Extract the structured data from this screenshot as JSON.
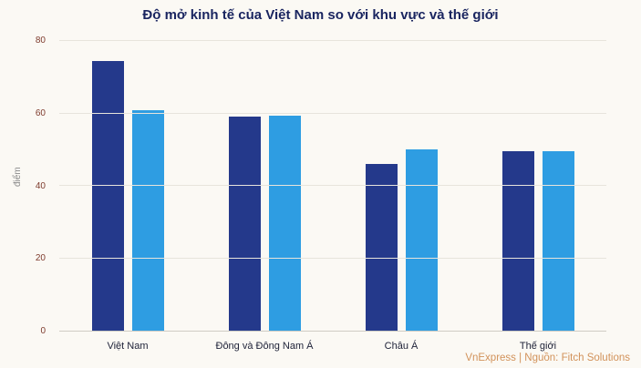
{
  "title": "Độ mở kinh tế của Việt Nam so với khu vực và thế giới",
  "footer": "VnExpress | Nguồn: Fitch Solutions",
  "chart_data": {
    "type": "bar",
    "title": "Độ mở kinh tế của Việt Nam so với khu vực và thế giới",
    "categories": [
      "Việt Nam",
      "Đông và Đông Nam Á",
      "Châu Á",
      "Thế giới"
    ],
    "series": [
      {
        "name": "dark-blue-series",
        "color": "#24398b",
        "values": [
          74.5,
          59,
          46,
          49.5
        ]
      },
      {
        "name": "light-blue-series",
        "color": "#2e9de2",
        "values": [
          61,
          59.5,
          50,
          49.5
        ]
      }
    ],
    "xlabel": "",
    "ylabel": "điểm",
    "ylim": [
      0,
      80
    ],
    "yticks": [
      0,
      20,
      40,
      60,
      80
    ],
    "grid": true,
    "legend": "none"
  },
  "colors": {
    "background": "#fbf9f4",
    "title": "#1a2560",
    "ytick": "#7e3b2d",
    "xtick": "#20243a",
    "grid": "#e7e4dc",
    "axisline": "#cfccc4",
    "footer": "#d2925a",
    "ylabel": "#8a8a8a"
  }
}
